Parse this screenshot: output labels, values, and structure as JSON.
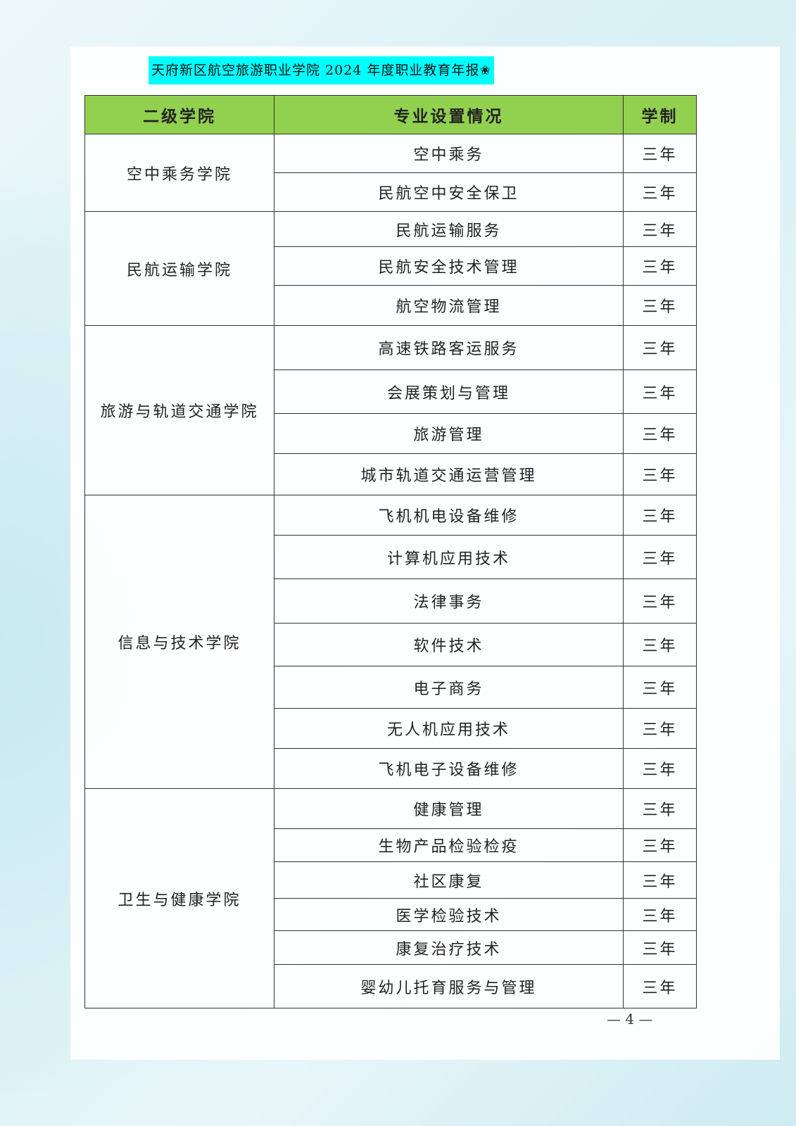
{
  "header": {
    "title": "天府新区航空旅游职业学院 2024 年度职业教育年报✬"
  },
  "table": {
    "columns": [
      "二级学院",
      "专业设置情况",
      "学制"
    ],
    "groups": [
      {
        "college": "空中乘务学院",
        "majors": [
          {
            "name": "空中乘务",
            "duration": "三年"
          },
          {
            "name": "民航空中安全保卫",
            "duration": "三年"
          }
        ]
      },
      {
        "college": "民航运输学院",
        "majors": [
          {
            "name": "民航运输服务",
            "duration": "三年"
          },
          {
            "name": "民航安全技术管理",
            "duration": "三年"
          },
          {
            "name": "航空物流管理",
            "duration": "三年"
          }
        ]
      },
      {
        "college": "旅游与轨道交通学院",
        "majors": [
          {
            "name": "高速铁路客运服务",
            "duration": "三年"
          },
          {
            "name": "会展策划与管理",
            "duration": "三年"
          },
          {
            "name": "旅游管理",
            "duration": "三年"
          },
          {
            "name": "城市轨道交通运营管理",
            "duration": "三年"
          }
        ]
      },
      {
        "college": "信息与技术学院",
        "majors": [
          {
            "name": "飞机机电设备维修",
            "duration": "三年"
          },
          {
            "name": "计算机应用技术",
            "duration": "三年"
          },
          {
            "name": "法律事务",
            "duration": "三年"
          },
          {
            "name": "软件技术",
            "duration": "三年"
          },
          {
            "name": "电子商务",
            "duration": "三年"
          },
          {
            "name": "无人机应用技术",
            "duration": "三年"
          },
          {
            "name": "飞机电子设备维修",
            "duration": "三年"
          }
        ]
      },
      {
        "college": "卫生与健康学院",
        "majors": [
          {
            "name": "健康管理",
            "duration": "三年"
          },
          {
            "name": "生物产品检验检疫",
            "duration": "三年"
          },
          {
            "name": "社区康复",
            "duration": "三年"
          },
          {
            "name": "医学检验技术",
            "duration": "三年"
          },
          {
            "name": "康复治疗技术",
            "duration": "三年"
          },
          {
            "name": "婴幼儿托育服务与管理",
            "duration": "三年"
          }
        ]
      }
    ]
  },
  "footer": {
    "page_number": "— 4 —"
  },
  "colors": {
    "header_bg": "#92d050",
    "title_bg": "#00ffff"
  }
}
